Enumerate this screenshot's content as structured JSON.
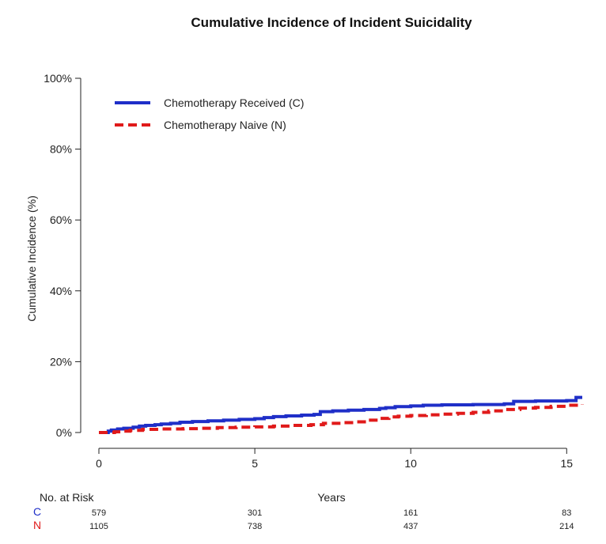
{
  "chart_data": {
    "type": "line",
    "title": "Cumulative Incidence of Incident Suicidality",
    "xlabel": "Years",
    "ylabel": "Cumulative Incidence (%)",
    "xlim": [
      0,
      15.5
    ],
    "ylim": [
      0,
      100
    ],
    "x_ticks": [
      0,
      5,
      10,
      15
    ],
    "y_ticks": [
      0,
      20,
      40,
      60,
      80,
      100
    ],
    "y_tick_labels": [
      "0%",
      "20%",
      "40%",
      "60%",
      "80%",
      "100%"
    ],
    "legend_position": "top-left",
    "grid": false,
    "series": [
      {
        "name": "Chemotherapy Received (C)",
        "color": "#1f2fc8",
        "style": "solid",
        "x": [
          0,
          0.3,
          0.4,
          0.6,
          0.8,
          1.1,
          1.3,
          1.5,
          1.8,
          2.0,
          2.3,
          2.6,
          3.0,
          3.5,
          4.0,
          4.5,
          5.0,
          5.3,
          5.6,
          6.0,
          6.5,
          6.9,
          7.1,
          7.5,
          8.0,
          8.5,
          9.0,
          9.2,
          9.5,
          10.0,
          10.4,
          11.0,
          12.0,
          13.0,
          13.3,
          14.0,
          15.0,
          15.3,
          15.5
        ],
        "y": [
          0,
          0.4,
          0.7,
          1.0,
          1.2,
          1.5,
          1.8,
          2.0,
          2.2,
          2.4,
          2.6,
          2.9,
          3.1,
          3.3,
          3.5,
          3.7,
          3.9,
          4.2,
          4.5,
          4.7,
          4.9,
          5.1,
          5.9,
          6.1,
          6.3,
          6.5,
          6.8,
          7.0,
          7.3,
          7.5,
          7.7,
          7.8,
          7.9,
          8.1,
          8.8,
          8.9,
          9.0,
          9.9,
          9.9
        ]
      },
      {
        "name": "Chemotherapy Naive (N)",
        "color": "#e01a1a",
        "style": "dashed",
        "x": [
          0,
          0.5,
          0.8,
          1.0,
          1.4,
          2.0,
          2.7,
          3.2,
          3.8,
          4.4,
          5.0,
          5.6,
          6.2,
          6.8,
          7.2,
          7.8,
          8.2,
          8.6,
          9.0,
          9.3,
          9.6,
          10.0,
          10.5,
          11.0,
          11.5,
          12.0,
          12.5,
          13.0,
          13.5,
          14.0,
          14.5,
          15.0,
          15.5
        ],
        "y": [
          0,
          0.2,
          0.4,
          0.6,
          0.9,
          1.0,
          1.1,
          1.2,
          1.4,
          1.5,
          1.6,
          1.8,
          2.0,
          2.2,
          2.6,
          2.8,
          3.0,
          3.5,
          4.0,
          4.4,
          4.6,
          4.8,
          5.0,
          5.2,
          5.4,
          5.7,
          6.1,
          6.5,
          6.9,
          7.1,
          7.4,
          7.7,
          7.9
        ]
      }
    ],
    "risk_table": {
      "header": "No. at Risk",
      "at_x": [
        0,
        5,
        10,
        15
      ],
      "rows": [
        {
          "label": "C",
          "color": "#1f2fc8",
          "values": [
            "579",
            "301",
            "161",
            "83"
          ]
        },
        {
          "label": "N",
          "color": "#e01a1a",
          "values": [
            "1105",
            "738",
            "437",
            "214"
          ]
        }
      ]
    }
  }
}
